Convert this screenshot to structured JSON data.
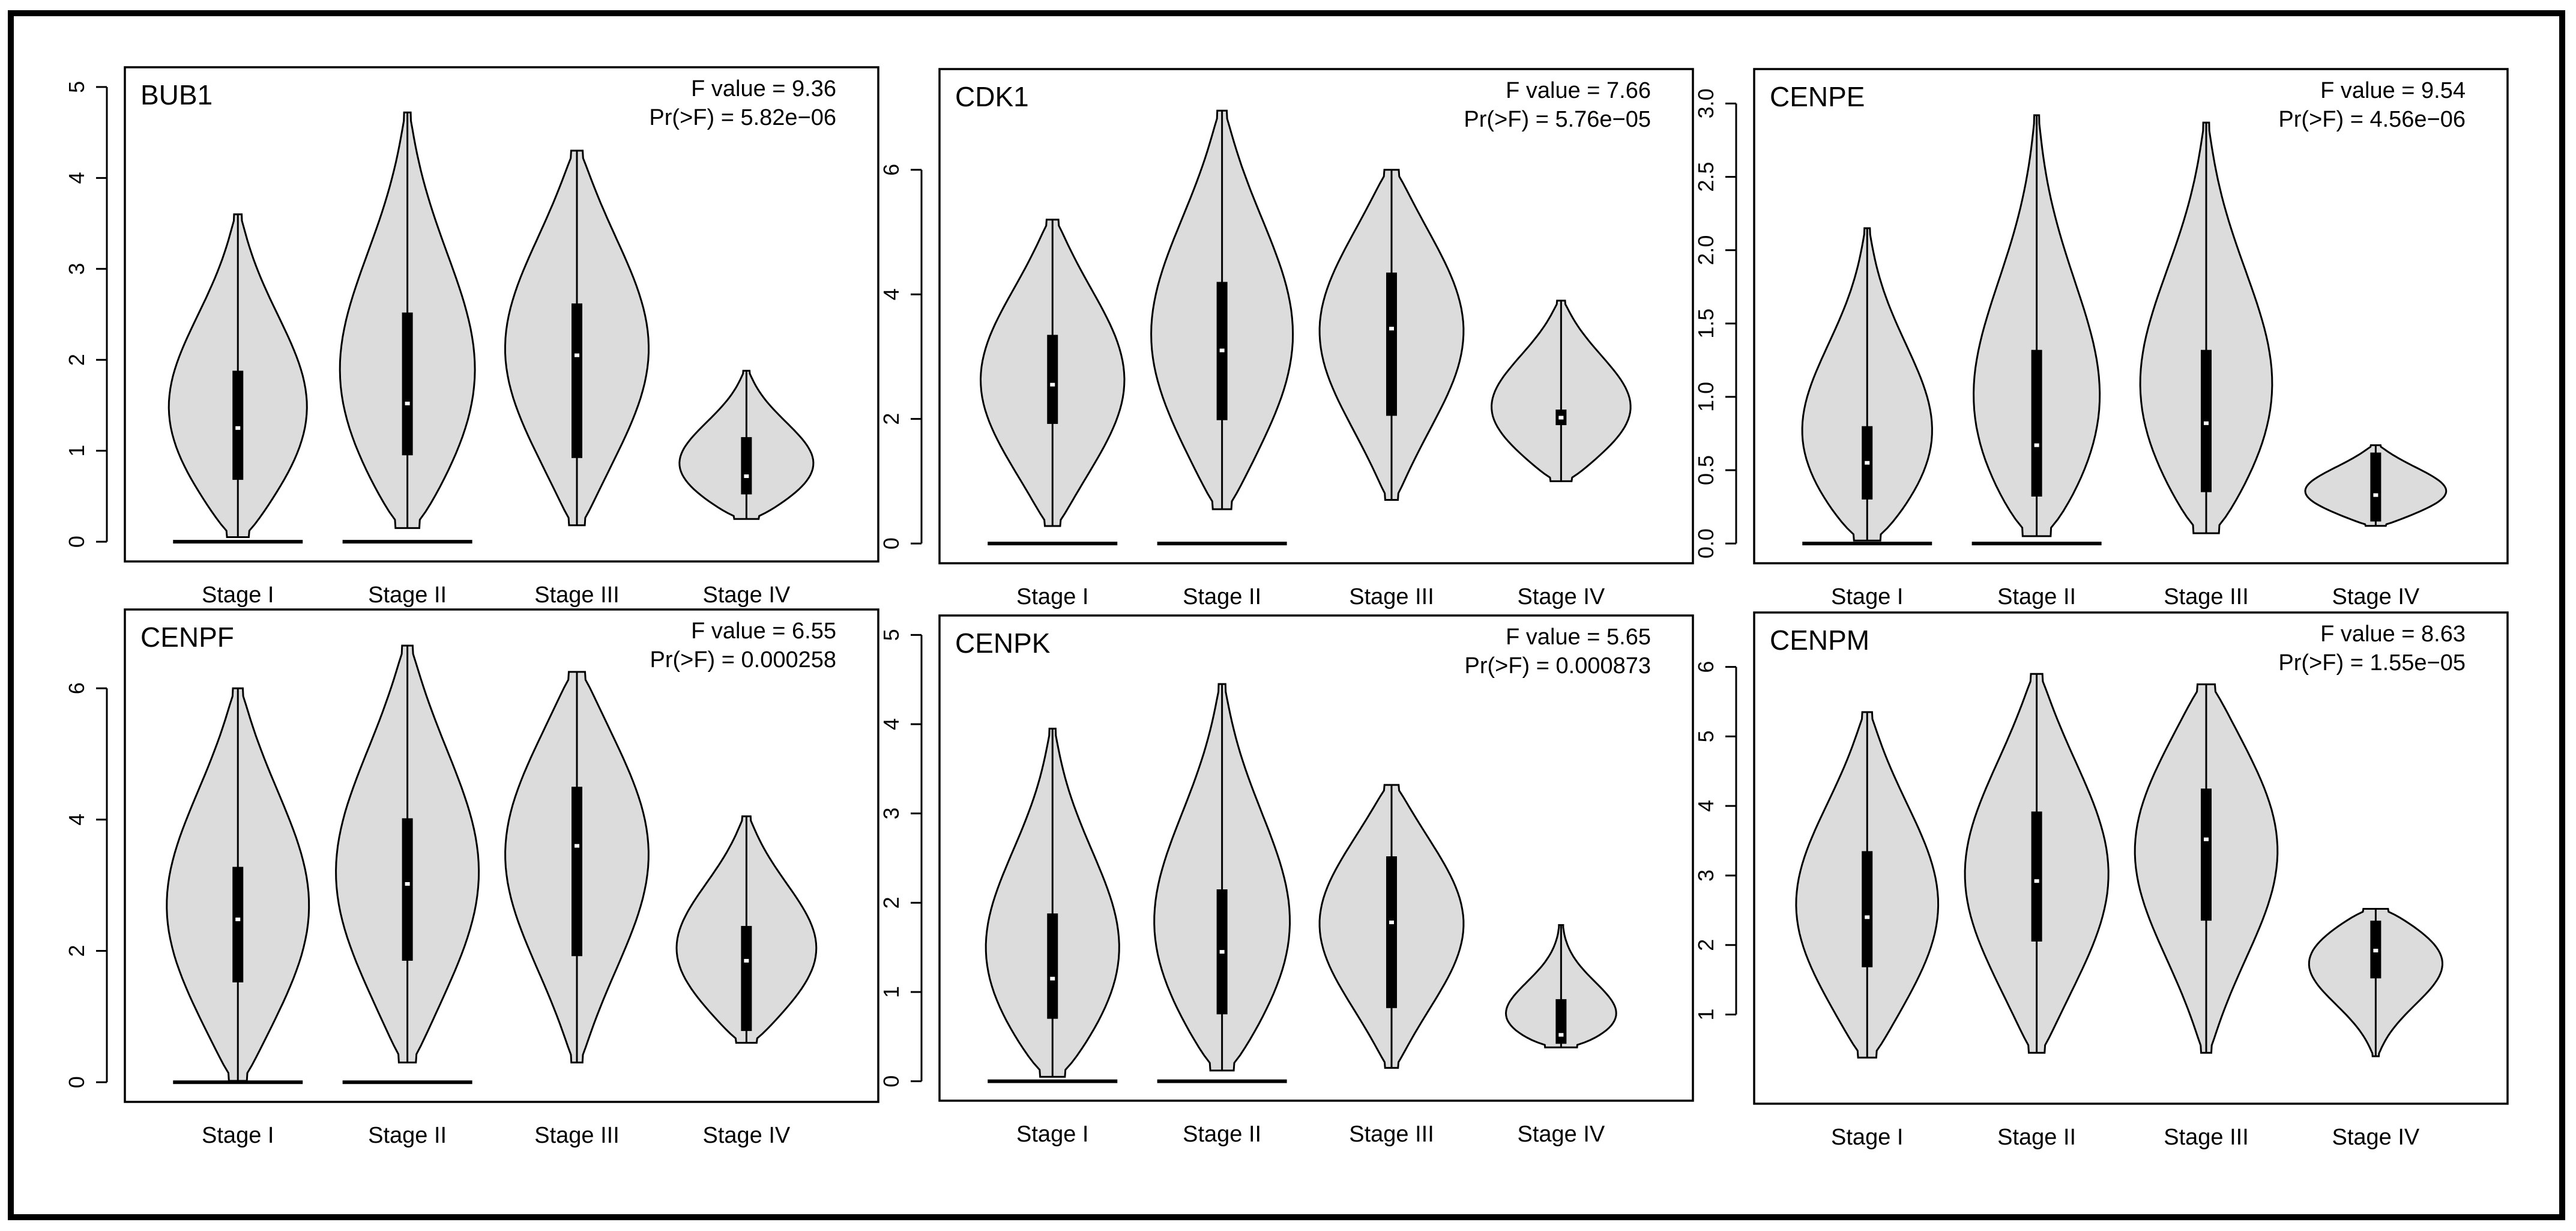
{
  "chart_data": [
    {
      "type": "violin",
      "gene": "BUB1",
      "stat_f": "F value = 9.36",
      "stat_p": "Pr(>F) = 5.82e−06",
      "categories": [
        "Stage I",
        "Stage II",
        "Stage III",
        "Stage IV"
      ],
      "ylim": [
        0,
        5
      ],
      "yticks": [
        0,
        1,
        2,
        3,
        4,
        5
      ],
      "groups": [
        {
          "min": 0.05,
          "q1": 0.68,
          "median": 1.25,
          "q3": 1.88,
          "max": 3.6,
          "floor": 0.0
        },
        {
          "min": 0.15,
          "q1": 0.95,
          "median": 1.52,
          "q3": 2.52,
          "max": 4.72,
          "floor": 0.0
        },
        {
          "min": 0.18,
          "q1": 0.92,
          "median": 2.05,
          "q3": 2.62,
          "max": 4.3,
          "floor": null
        },
        {
          "min": 0.25,
          "q1": 0.52,
          "median": 0.72,
          "q3": 1.15,
          "max": 1.88,
          "floor": null
        }
      ]
    },
    {
      "type": "violin",
      "gene": "CDK1",
      "stat_f": "F value = 7.66",
      "stat_p": "Pr(>F) = 5.76e−05",
      "categories": [
        "Stage I",
        "Stage II",
        "Stage III",
        "Stage IV"
      ],
      "ylim": [
        0,
        7.3
      ],
      "yticks": [
        0,
        2,
        4,
        6
      ],
      "groups": [
        {
          "min": 0.28,
          "q1": 1.92,
          "median": 2.55,
          "q3": 3.35,
          "max": 5.2,
          "floor": 0.0
        },
        {
          "min": 0.55,
          "q1": 1.98,
          "median": 3.1,
          "q3": 4.2,
          "max": 6.95,
          "floor": 0.0
        },
        {
          "min": 0.7,
          "q1": 2.05,
          "median": 3.45,
          "q3": 4.35,
          "max": 6.0,
          "floor": null
        },
        {
          "min": 1.0,
          "q1": 1.9,
          "median": 2.02,
          "q3": 2.15,
          "max": 3.9,
          "floor": null
        }
      ]
    },
    {
      "type": "violin",
      "gene": "CENPE",
      "stat_f": "F value = 9.54",
      "stat_p": "Pr(>F) = 4.56e−06",
      "categories": [
        "Stage I",
        "Stage II",
        "Stage III",
        "Stage IV"
      ],
      "ylim": [
        0,
        3.1
      ],
      "yticks": [
        0.0,
        0.5,
        1.0,
        1.5,
        2.0,
        2.5,
        3.0
      ],
      "yticklabels": [
        "0.0",
        "0.5",
        "1.0",
        "1.5",
        "2.0",
        "2.5",
        "3.0"
      ],
      "groups": [
        {
          "min": 0.02,
          "q1": 0.3,
          "median": 0.55,
          "q3": 0.8,
          "max": 2.15,
          "floor": 0.0
        },
        {
          "min": 0.05,
          "q1": 0.32,
          "median": 0.67,
          "q3": 1.32,
          "max": 2.92,
          "floor": 0.0
        },
        {
          "min": 0.07,
          "q1": 0.35,
          "median": 0.82,
          "q3": 1.32,
          "max": 2.87,
          "floor": null
        },
        {
          "min": 0.12,
          "q1": 0.15,
          "median": 0.33,
          "q3": 0.62,
          "max": 0.67,
          "floor": null
        }
      ]
    },
    {
      "type": "violin",
      "gene": "CENPF",
      "stat_f": "F value = 6.55",
      "stat_p": "Pr(>F) = 0.000258",
      "categories": [
        "Stage I",
        "Stage II",
        "Stage III",
        "Stage IV"
      ],
      "ylim": [
        0,
        6.9
      ],
      "yticks": [
        0,
        2,
        4,
        6
      ],
      "groups": [
        {
          "min": 0.02,
          "q1": 1.52,
          "median": 2.48,
          "q3": 3.28,
          "max": 6.0,
          "floor": 0.0
        },
        {
          "min": 0.3,
          "q1": 1.85,
          "median": 3.02,
          "q3": 4.02,
          "max": 6.65,
          "floor": 0.0
        },
        {
          "min": 0.3,
          "q1": 1.92,
          "median": 3.6,
          "q3": 4.5,
          "max": 6.25,
          "floor": null
        },
        {
          "min": 0.6,
          "q1": 0.78,
          "median": 1.85,
          "q3": 2.38,
          "max": 4.05,
          "floor": null
        }
      ]
    },
    {
      "type": "violin",
      "gene": "CENPK",
      "stat_f": "F value = 5.65",
      "stat_p": "Pr(>F) = 0.000873",
      "categories": [
        "Stage I",
        "Stage II",
        "Stage III",
        "Stage IV"
      ],
      "ylim": [
        0,
        5
      ],
      "yticks": [
        0,
        1,
        2,
        3,
        4,
        5
      ],
      "groups": [
        {
          "min": 0.05,
          "q1": 0.7,
          "median": 1.15,
          "q3": 1.88,
          "max": 3.95,
          "floor": 0.0
        },
        {
          "min": 0.12,
          "q1": 0.75,
          "median": 1.45,
          "q3": 2.15,
          "max": 4.45,
          "floor": 0.0
        },
        {
          "min": 0.15,
          "q1": 0.82,
          "median": 1.78,
          "q3": 2.52,
          "max": 3.32,
          "floor": null
        },
        {
          "min": 0.38,
          "q1": 0.42,
          "median": 0.52,
          "q3": 0.92,
          "max": 1.75,
          "floor": null
        }
      ]
    },
    {
      "type": "violin",
      "gene": "CENPM",
      "stat_f": "F value = 8.63",
      "stat_p": "Pr(>F) = 1.55e−05",
      "categories": [
        "Stage I",
        "Stage II",
        "Stage III",
        "Stage IV"
      ],
      "ylim": [
        0,
        6.5
      ],
      "yticks": [
        1,
        2,
        3,
        4,
        5,
        6
      ],
      "groups": [
        {
          "min": 0.38,
          "q1": 1.68,
          "median": 2.4,
          "q3": 3.35,
          "max": 5.35,
          "floor": null
        },
        {
          "min": 0.45,
          "q1": 2.05,
          "median": 2.92,
          "q3": 3.92,
          "max": 5.9,
          "floor": null
        },
        {
          "min": 0.45,
          "q1": 2.35,
          "median": 3.52,
          "q3": 4.25,
          "max": 5.75,
          "floor": null
        },
        {
          "min": 0.4,
          "q1": 1.52,
          "median": 1.92,
          "q3": 2.35,
          "max": 2.52,
          "floor": null
        }
      ]
    }
  ]
}
